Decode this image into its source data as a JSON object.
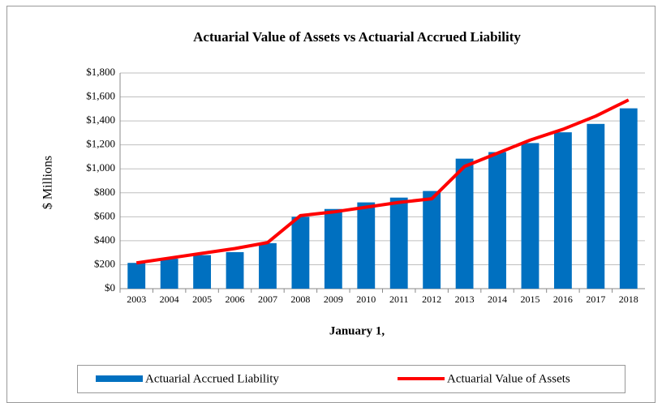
{
  "chart_data": {
    "type": "bar",
    "title": "Actuarial Value of Assets vs Actuarial Accrued Liability",
    "x_label": "January 1,",
    "y_label": "$ Millions",
    "categories": [
      "2003",
      "2004",
      "2005",
      "2006",
      "2007",
      "2008",
      "2009",
      "2010",
      "2011",
      "2012",
      "2013",
      "2014",
      "2015",
      "2016",
      "2017",
      "2018"
    ],
    "series": [
      {
        "name": "Actuarial Accrued Liability",
        "type": "bar",
        "color": "#0070c0",
        "values": [
          215,
          250,
          280,
          305,
          380,
          600,
          665,
          720,
          760,
          815,
          1085,
          1140,
          1215,
          1305,
          1375,
          1505
        ]
      },
      {
        "name": "Actuarial Value of Assets",
        "type": "line",
        "color": "#ff0000",
        "values": [
          215,
          255,
          295,
          335,
          385,
          610,
          640,
          680,
          720,
          750,
          1020,
          1130,
          1240,
          1330,
          1440,
          1575
        ]
      }
    ],
    "ylim": [
      0,
      1800
    ],
    "yticks": [
      {
        "value": 0,
        "label": "$0"
      },
      {
        "value": 200,
        "label": "$200"
      },
      {
        "value": 400,
        "label": "$400"
      },
      {
        "value": 600,
        "label": "$600"
      },
      {
        "value": 800,
        "label": "$800"
      },
      {
        "value": 1000,
        "label": "$1,000"
      },
      {
        "value": 1200,
        "label": "$1,200"
      },
      {
        "value": 1400,
        "label": "$1,400"
      },
      {
        "value": 1600,
        "label": "$1,600"
      },
      {
        "value": 1800,
        "label": "$1,800"
      }
    ],
    "grid": true,
    "legend": "bottom"
  }
}
